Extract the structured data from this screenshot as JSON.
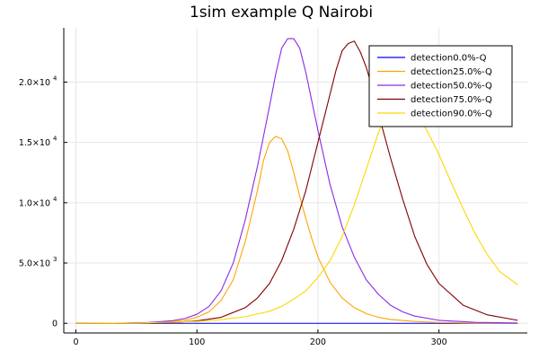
{
  "chart_data": {
    "type": "line",
    "title": "1sim example Q Nairobi",
    "xlabel": "",
    "ylabel": "",
    "xlim": [
      -10,
      373
    ],
    "ylim": [
      -800,
      24500
    ],
    "grid": true,
    "legend_position": "top-right",
    "x_ticks": [
      {
        "value": 0,
        "label": "0"
      },
      {
        "value": 100,
        "label": "100"
      },
      {
        "value": 200,
        "label": "200"
      },
      {
        "value": 300,
        "label": "300"
      }
    ],
    "y_ticks": [
      {
        "value": 0,
        "label": "0",
        "exp": ""
      },
      {
        "value": 5000,
        "label": "5.0×10",
        "exp": "3"
      },
      {
        "value": 10000,
        "label": "1.0×10",
        "exp": "4"
      },
      {
        "value": 15000,
        "label": "1.5×10",
        "exp": "4"
      },
      {
        "value": 20000,
        "label": "2.0×10",
        "exp": "4"
      }
    ],
    "series": [
      {
        "name": "detection0.0%-Q",
        "color": "#0000ff",
        "x": [
          0,
          100,
          200,
          300,
          365
        ],
        "y": [
          0,
          0,
          0,
          0,
          0
        ]
      },
      {
        "name": "detection25.0%-Q",
        "color": "#ffa500",
        "x": [
          0,
          20,
          40,
          60,
          80,
          90,
          100,
          110,
          120,
          130,
          140,
          150,
          155,
          160,
          165,
          170,
          175,
          180,
          185,
          190,
          195,
          200,
          210,
          220,
          230,
          240,
          250,
          260,
          280,
          300,
          330,
          365
        ],
        "y": [
          0,
          5,
          15,
          45,
          140,
          260,
          500,
          950,
          1900,
          3600,
          6800,
          11000,
          13500,
          15000,
          15500,
          15300,
          14300,
          12500,
          10500,
          8700,
          7000,
          5500,
          3400,
          2100,
          1300,
          800,
          500,
          320,
          150,
          70,
          25,
          10
        ]
      },
      {
        "name": "detection50.0%-Q",
        "color": "#8a2be2",
        "x": [
          0,
          20,
          40,
          60,
          80,
          90,
          100,
          110,
          120,
          130,
          140,
          150,
          160,
          165,
          170,
          175,
          180,
          185,
          190,
          195,
          200,
          210,
          220,
          230,
          240,
          250,
          260,
          270,
          280,
          300,
          330,
          365
        ],
        "y": [
          0,
          8,
          25,
          70,
          220,
          400,
          750,
          1400,
          2700,
          5000,
          8600,
          13000,
          18000,
          20600,
          22800,
          23600,
          23600,
          22800,
          20800,
          18400,
          16000,
          11500,
          8000,
          5500,
          3600,
          2400,
          1500,
          950,
          600,
          250,
          80,
          25
        ]
      },
      {
        "name": "detection75.0%-Q",
        "color": "#800000",
        "x": [
          0,
          40,
          80,
          100,
          120,
          140,
          150,
          160,
          170,
          180,
          190,
          200,
          210,
          215,
          220,
          225,
          230,
          235,
          240,
          245,
          250,
          260,
          270,
          280,
          290,
          300,
          320,
          340,
          365
        ],
        "y": [
          0,
          10,
          70,
          200,
          500,
          1300,
          2100,
          3300,
          5200,
          7800,
          11000,
          15000,
          19000,
          21000,
          22600,
          23200,
          23400,
          22500,
          21200,
          19500,
          17400,
          13700,
          10300,
          7200,
          4900,
          3300,
          1500,
          700,
          250
        ]
      },
      {
        "name": "detection90.0%-Q",
        "color": "#ffd700",
        "x": [
          0,
          50,
          100,
          120,
          140,
          160,
          170,
          180,
          190,
          200,
          210,
          220,
          230,
          240,
          250,
          255,
          260,
          265,
          270,
          280,
          290,
          300,
          310,
          320,
          330,
          340,
          350,
          365
        ],
        "y": [
          0,
          20,
          150,
          300,
          550,
          1000,
          1400,
          2000,
          2700,
          3800,
          5200,
          7200,
          9800,
          12800,
          15800,
          17000,
          17800,
          18200,
          18200,
          17500,
          16000,
          14000,
          11700,
          9500,
          7400,
          5700,
          4300,
          3200
        ]
      }
    ]
  }
}
